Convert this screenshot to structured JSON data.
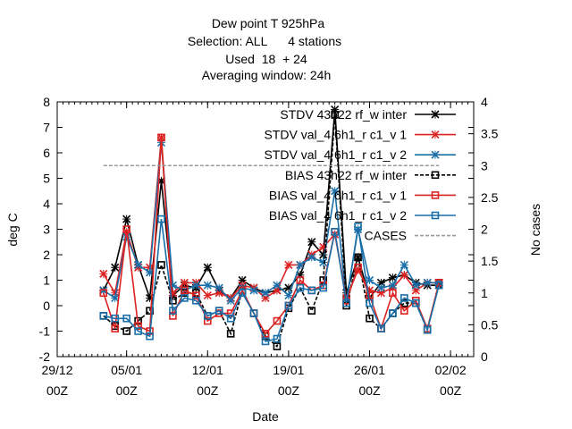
{
  "chart_data": {
    "type": "line",
    "title_lines": [
      "Dew point T 925hPa",
      "Selection: ALL      4 stations",
      "Used  18  + 24",
      "Averaging window: 24h"
    ],
    "xlabel": "Date",
    "ylabel": "deg C",
    "y2label": "No cases",
    "xlim": [
      0,
      72
    ],
    "ylim": [
      -2,
      8
    ],
    "y2lim": [
      0,
      4
    ],
    "grid": false,
    "legend_position": "top-right",
    "x_ticks": [
      {
        "x": 0,
        "line1": "29/12",
        "line2": "00Z"
      },
      {
        "x": 12,
        "line1": "05/01",
        "line2": "00Z"
      },
      {
        "x": 26,
        "line1": "12/01",
        "line2": "00Z"
      },
      {
        "x": 40,
        "line1": "19/01",
        "line2": "00Z"
      },
      {
        "x": 54,
        "line1": "26/01",
        "line2": "00Z"
      },
      {
        "x": 68,
        "line1": "02/02",
        "line2": "00Z"
      }
    ],
    "y_ticks": [
      "-2",
      "-1",
      "0",
      "1",
      "2",
      "3",
      "4",
      "5",
      "6",
      "7",
      "8"
    ],
    "y2_ticks": [
      "0",
      "0.5",
      "1",
      "1.5",
      "2",
      "2.5",
      "3",
      "3.5",
      "4"
    ],
    "x": [
      8,
      10,
      12,
      14,
      16,
      18,
      20,
      22,
      24,
      26,
      28,
      30,
      32,
      34,
      36,
      38,
      40,
      42,
      44,
      46,
      48,
      50,
      52,
      54,
      56,
      58,
      60,
      62,
      64,
      66
    ],
    "series": [
      {
        "name": "STDV 43h22 rf_w inter",
        "axis": "y",
        "marker": "x",
        "dash": "solid",
        "color": "#000000",
        "values": [
          0.6,
          1.5,
          3.4,
          1.6,
          0.3,
          4.9,
          0.4,
          0.8,
          0.7,
          1.5,
          0.6,
          0.3,
          1.0,
          0.7,
          0.5,
          0.6,
          0.7,
          1.2,
          2.5,
          2.0,
          7.7,
          0.5,
          1.9,
          0.3,
          0.9,
          1.1,
          1.2,
          0.9,
          0.8,
          0.8
        ]
      },
      {
        "name": "STDV val_4 6h1_r c1_v 1",
        "axis": "y",
        "marker": "x",
        "dash": "solid",
        "color": "#dd2222",
        "values": [
          1.25,
          0.5,
          2.9,
          1.5,
          1.5,
          6.6,
          0.5,
          0.9,
          0.9,
          0.4,
          0.5,
          0.3,
          0.8,
          0.7,
          0.3,
          0.6,
          1.6,
          1.6,
          2.0,
          2.3,
          2.8,
          0.3,
          1.4,
          0.6,
          0.5,
          0.7,
          1.2,
          0.6,
          0.9,
          0.9
        ]
      },
      {
        "name": "STDV val_4 6h1_r c1_v 2",
        "axis": "y",
        "marker": "x",
        "dash": "solid",
        "color": "#1a6fa8",
        "values": [
          0.6,
          0.3,
          2.7,
          1.6,
          1.3,
          6.4,
          0.8,
          0.6,
          0.8,
          0.8,
          0.7,
          0.2,
          0.7,
          0.6,
          0.5,
          0.8,
          0.4,
          1.6,
          1.9,
          1.7,
          4.5,
          0.2,
          3.0,
          1.0,
          0.7,
          0.8,
          1.6,
          0.8,
          0.9,
          0.9
        ]
      },
      {
        "name": "BIAS 43h22 rf_w inter",
        "axis": "y",
        "marker": "square",
        "dash": "dash",
        "color": "#000000",
        "values": [
          -0.4,
          -0.8,
          -1.0,
          -0.6,
          -0.2,
          1.6,
          0.2,
          0.5,
          0.5,
          -0.4,
          -0.2,
          -1.1,
          0.6,
          -0.3,
          -1.2,
          -1.6,
          -0.1,
          0.7,
          -0.2,
          1.0,
          7.5,
          0.0,
          1.9,
          -0.5,
          -0.9,
          -0.3,
          0.1,
          0.1,
          -0.95,
          0.9
        ]
      },
      {
        "name": "BIAS val_4 6h1_r c1_v 1",
        "axis": "y",
        "marker": "square",
        "dash": "solid",
        "color": "#dd2222",
        "values": [
          0.5,
          -0.9,
          3.0,
          -0.8,
          -1.0,
          6.6,
          -0.4,
          0.6,
          0.4,
          -0.6,
          -0.3,
          -0.3,
          0.6,
          -0.3,
          -1.1,
          -0.6,
          0.0,
          1.0,
          0.6,
          0.8,
          2.9,
          0.2,
          1.5,
          0.4,
          -0.9,
          0.5,
          -0.2,
          0.2,
          -0.9,
          0.9
        ]
      },
      {
        "name": "BIAS val_4 6h1_r c1_v 2",
        "axis": "y",
        "marker": "square",
        "dash": "solid",
        "color": "#1a6fa8",
        "values": [
          -0.4,
          -0.5,
          -0.5,
          -1.0,
          -1.2,
          3.4,
          -0.2,
          0.3,
          0.2,
          -0.4,
          -0.2,
          -0.5,
          0.5,
          -0.3,
          -1.4,
          -1.3,
          0.0,
          0.7,
          0.6,
          0.7,
          2.9,
          0.1,
          3.1,
          0.1,
          -0.9,
          -0.3,
          0.3,
          0.1,
          -0.95,
          0.8
        ]
      },
      {
        "name": "CASES",
        "axis": "y2",
        "marker": "none",
        "dash": "dash",
        "color": "#999999",
        "x": [
          8,
          66
        ],
        "values": [
          3,
          3
        ]
      }
    ]
  }
}
